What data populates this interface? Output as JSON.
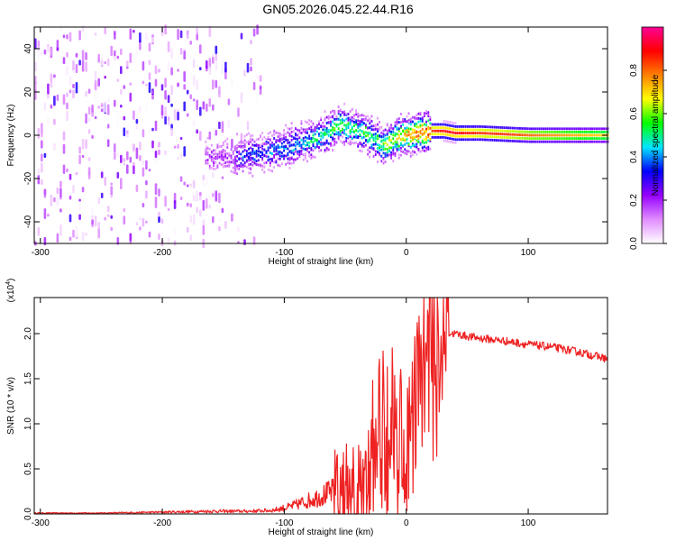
{
  "title": "GN05.2026.045.22.44.R16",
  "chart_data": [
    {
      "type": "heatmap",
      "title": "GN05.2026.045.22.44.R16",
      "xlabel": "Height of straight line (km)",
      "ylabel": "Frequency (Hz)",
      "xlim": [
        -305,
        165
      ],
      "ylim": [
        -50,
        50
      ],
      "xticks": [
        "-300",
        "-200",
        "-100",
        "0",
        "100"
      ],
      "yticks": [
        "40",
        "20",
        "0",
        "-20",
        "-40"
      ],
      "colorbar": {
        "label": "Normalized spectral amplitude",
        "range": [
          0.0,
          1.0
        ],
        "ticks": [
          "0.0",
          "0.2",
          "0.4",
          "0.6",
          "0.8"
        ],
        "colors": [
          "#ffffff",
          "#e08cff",
          "#9600ff",
          "#0000ff",
          "#00e6ff",
          "#00ff00",
          "#ffff00",
          "#ff8000",
          "#ff0000",
          "#ff0096"
        ]
      },
      "ridge": {
        "x": [
          -140,
          -120,
          -100,
          -80,
          -65,
          -55,
          -45,
          -35,
          -25,
          -20,
          -15,
          -10,
          0,
          10,
          20,
          30,
          40,
          60,
          80,
          100,
          130,
          165
        ],
        "frequency": [
          -10,
          -8,
          -6,
          -2,
          1,
          5,
          3,
          1,
          -2,
          -5,
          -3,
          -1,
          0,
          1,
          2,
          2,
          1,
          1,
          0.5,
          0,
          0,
          0
        ],
        "amplitude": [
          0.3,
          0.35,
          0.4,
          0.45,
          0.5,
          0.55,
          0.5,
          0.55,
          0.5,
          0.55,
          0.6,
          0.65,
          0.75,
          0.8,
          0.85,
          0.9,
          0.9,
          0.85,
          0.85,
          0.8,
          0.75,
          0.7
        ]
      }
    },
    {
      "type": "line",
      "xlabel": "Height of straight line (km)",
      "ylabel": "SNR (10 * v/v)",
      "y_multiplier": "(x10^4)",
      "xlim": [
        -305,
        165
      ],
      "ylim": [
        0,
        2.4
      ],
      "xticks": [
        "-300",
        "-200",
        "-100",
        "0",
        "100"
      ],
      "yticks": [
        "0.0",
        "0.5",
        "1.0",
        "1.5",
        "2.0"
      ],
      "color": "#ee2222",
      "series": [
        {
          "name": "SNR",
          "x": [
            -305,
            -250,
            -200,
            -160,
            -130,
            -110,
            -95,
            -80,
            -70,
            -60,
            -55,
            -50,
            -45,
            -40,
            -35,
            -30,
            -25,
            -20,
            -15,
            -10,
            -5,
            0,
            5,
            10,
            15,
            20,
            25,
            30,
            35,
            40,
            50,
            60,
            80,
            100,
            120,
            140,
            165
          ],
          "y": [
            0.01,
            0.01,
            0.02,
            0.03,
            0.03,
            0.04,
            0.08,
            0.15,
            0.2,
            0.25,
            0.22,
            0.15,
            0.1,
            0.08,
            0.2,
            0.45,
            0.75,
            0.9,
            1.0,
            1.05,
            0.85,
            0.55,
            1.05,
            1.45,
            1.65,
            1.85,
            1.95,
            2.05,
            2.0,
            2.0,
            1.97,
            1.95,
            1.92,
            1.88,
            1.85,
            1.8,
            1.72
          ]
        }
      ]
    }
  ]
}
